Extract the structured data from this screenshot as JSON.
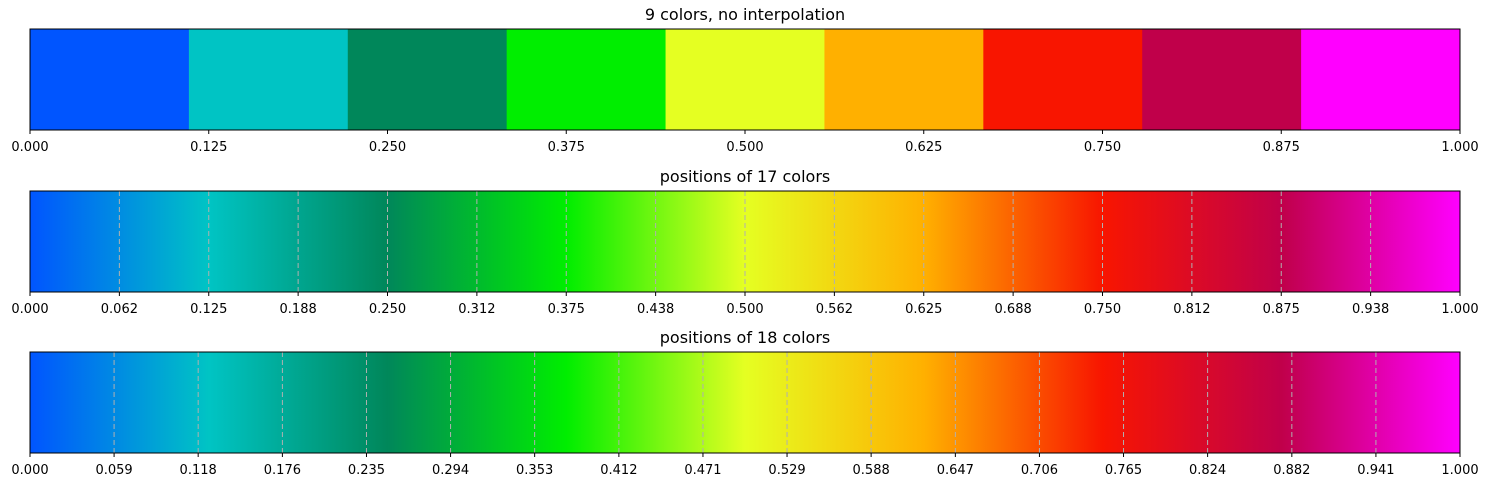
{
  "chart_data": [
    {
      "type": "heatmap",
      "title": "9 colors, no interpolation",
      "interpolation": "none",
      "colors": [
        "#0055ff",
        "#00c4c4",
        "#00875a",
        "#00ee00",
        "#e5ff22",
        "#ffb000",
        "#f81500",
        "#c0004a",
        "#ff00ff"
      ],
      "xlim": [
        0,
        1
      ],
      "xticks": [
        0.0,
        0.125,
        0.25,
        0.375,
        0.5,
        0.625,
        0.75,
        0.875,
        1.0
      ],
      "xtick_labels": [
        "0.000",
        "0.125",
        "0.250",
        "0.375",
        "0.500",
        "0.625",
        "0.750",
        "0.875",
        "1.000"
      ],
      "color_positions": []
    },
    {
      "type": "heatmap",
      "title": "positions of 17 colors",
      "interpolation": "linear",
      "colors": [
        "#0055ff",
        "#00c4c4",
        "#00875a",
        "#00ee00",
        "#e5ff22",
        "#ffb000",
        "#f81500",
        "#c0004a",
        "#ff00ff"
      ],
      "xlim": [
        0,
        1
      ],
      "xticks": [
        0.0,
        0.0625,
        0.125,
        0.1875,
        0.25,
        0.3125,
        0.375,
        0.4375,
        0.5,
        0.5625,
        0.625,
        0.6875,
        0.75,
        0.8125,
        0.875,
        0.9375,
        1.0
      ],
      "xtick_labels": [
        "0.000",
        "0.062",
        "0.125",
        "0.188",
        "0.250",
        "0.312",
        "0.375",
        "0.438",
        "0.500",
        "0.562",
        "0.625",
        "0.688",
        "0.750",
        "0.812",
        "0.875",
        "0.938",
        "1.000"
      ],
      "color_positions": [
        0.0625,
        0.125,
        0.1875,
        0.25,
        0.3125,
        0.375,
        0.4375,
        0.5,
        0.5625,
        0.625,
        0.6875,
        0.75,
        0.8125,
        0.875,
        0.9375
      ]
    },
    {
      "type": "heatmap",
      "title": "positions of 18 colors",
      "interpolation": "linear",
      "colors": [
        "#0055ff",
        "#00c4c4",
        "#00875a",
        "#00ee00",
        "#e5ff22",
        "#ffb000",
        "#f81500",
        "#c0004a",
        "#ff00ff"
      ],
      "xlim": [
        0,
        1
      ],
      "xticks": [
        0.0,
        0.0588,
        0.1176,
        0.1765,
        0.2353,
        0.2941,
        0.3529,
        0.4118,
        0.4706,
        0.5294,
        0.5882,
        0.6471,
        0.7059,
        0.7647,
        0.8235,
        0.8824,
        0.9412,
        1.0
      ],
      "xtick_labels": [
        "0.000",
        "0.059",
        "0.118",
        "0.176",
        "0.235",
        "0.294",
        "0.353",
        "0.412",
        "0.471",
        "0.529",
        "0.588",
        "0.647",
        "0.706",
        "0.765",
        "0.824",
        "0.882",
        "0.941",
        "1.000"
      ],
      "color_positions": [
        0.0588,
        0.1176,
        0.1765,
        0.2353,
        0.2941,
        0.3529,
        0.4118,
        0.4706,
        0.5294,
        0.5882,
        0.6471,
        0.7059,
        0.7647,
        0.8235,
        0.8824,
        0.9412
      ]
    }
  ]
}
